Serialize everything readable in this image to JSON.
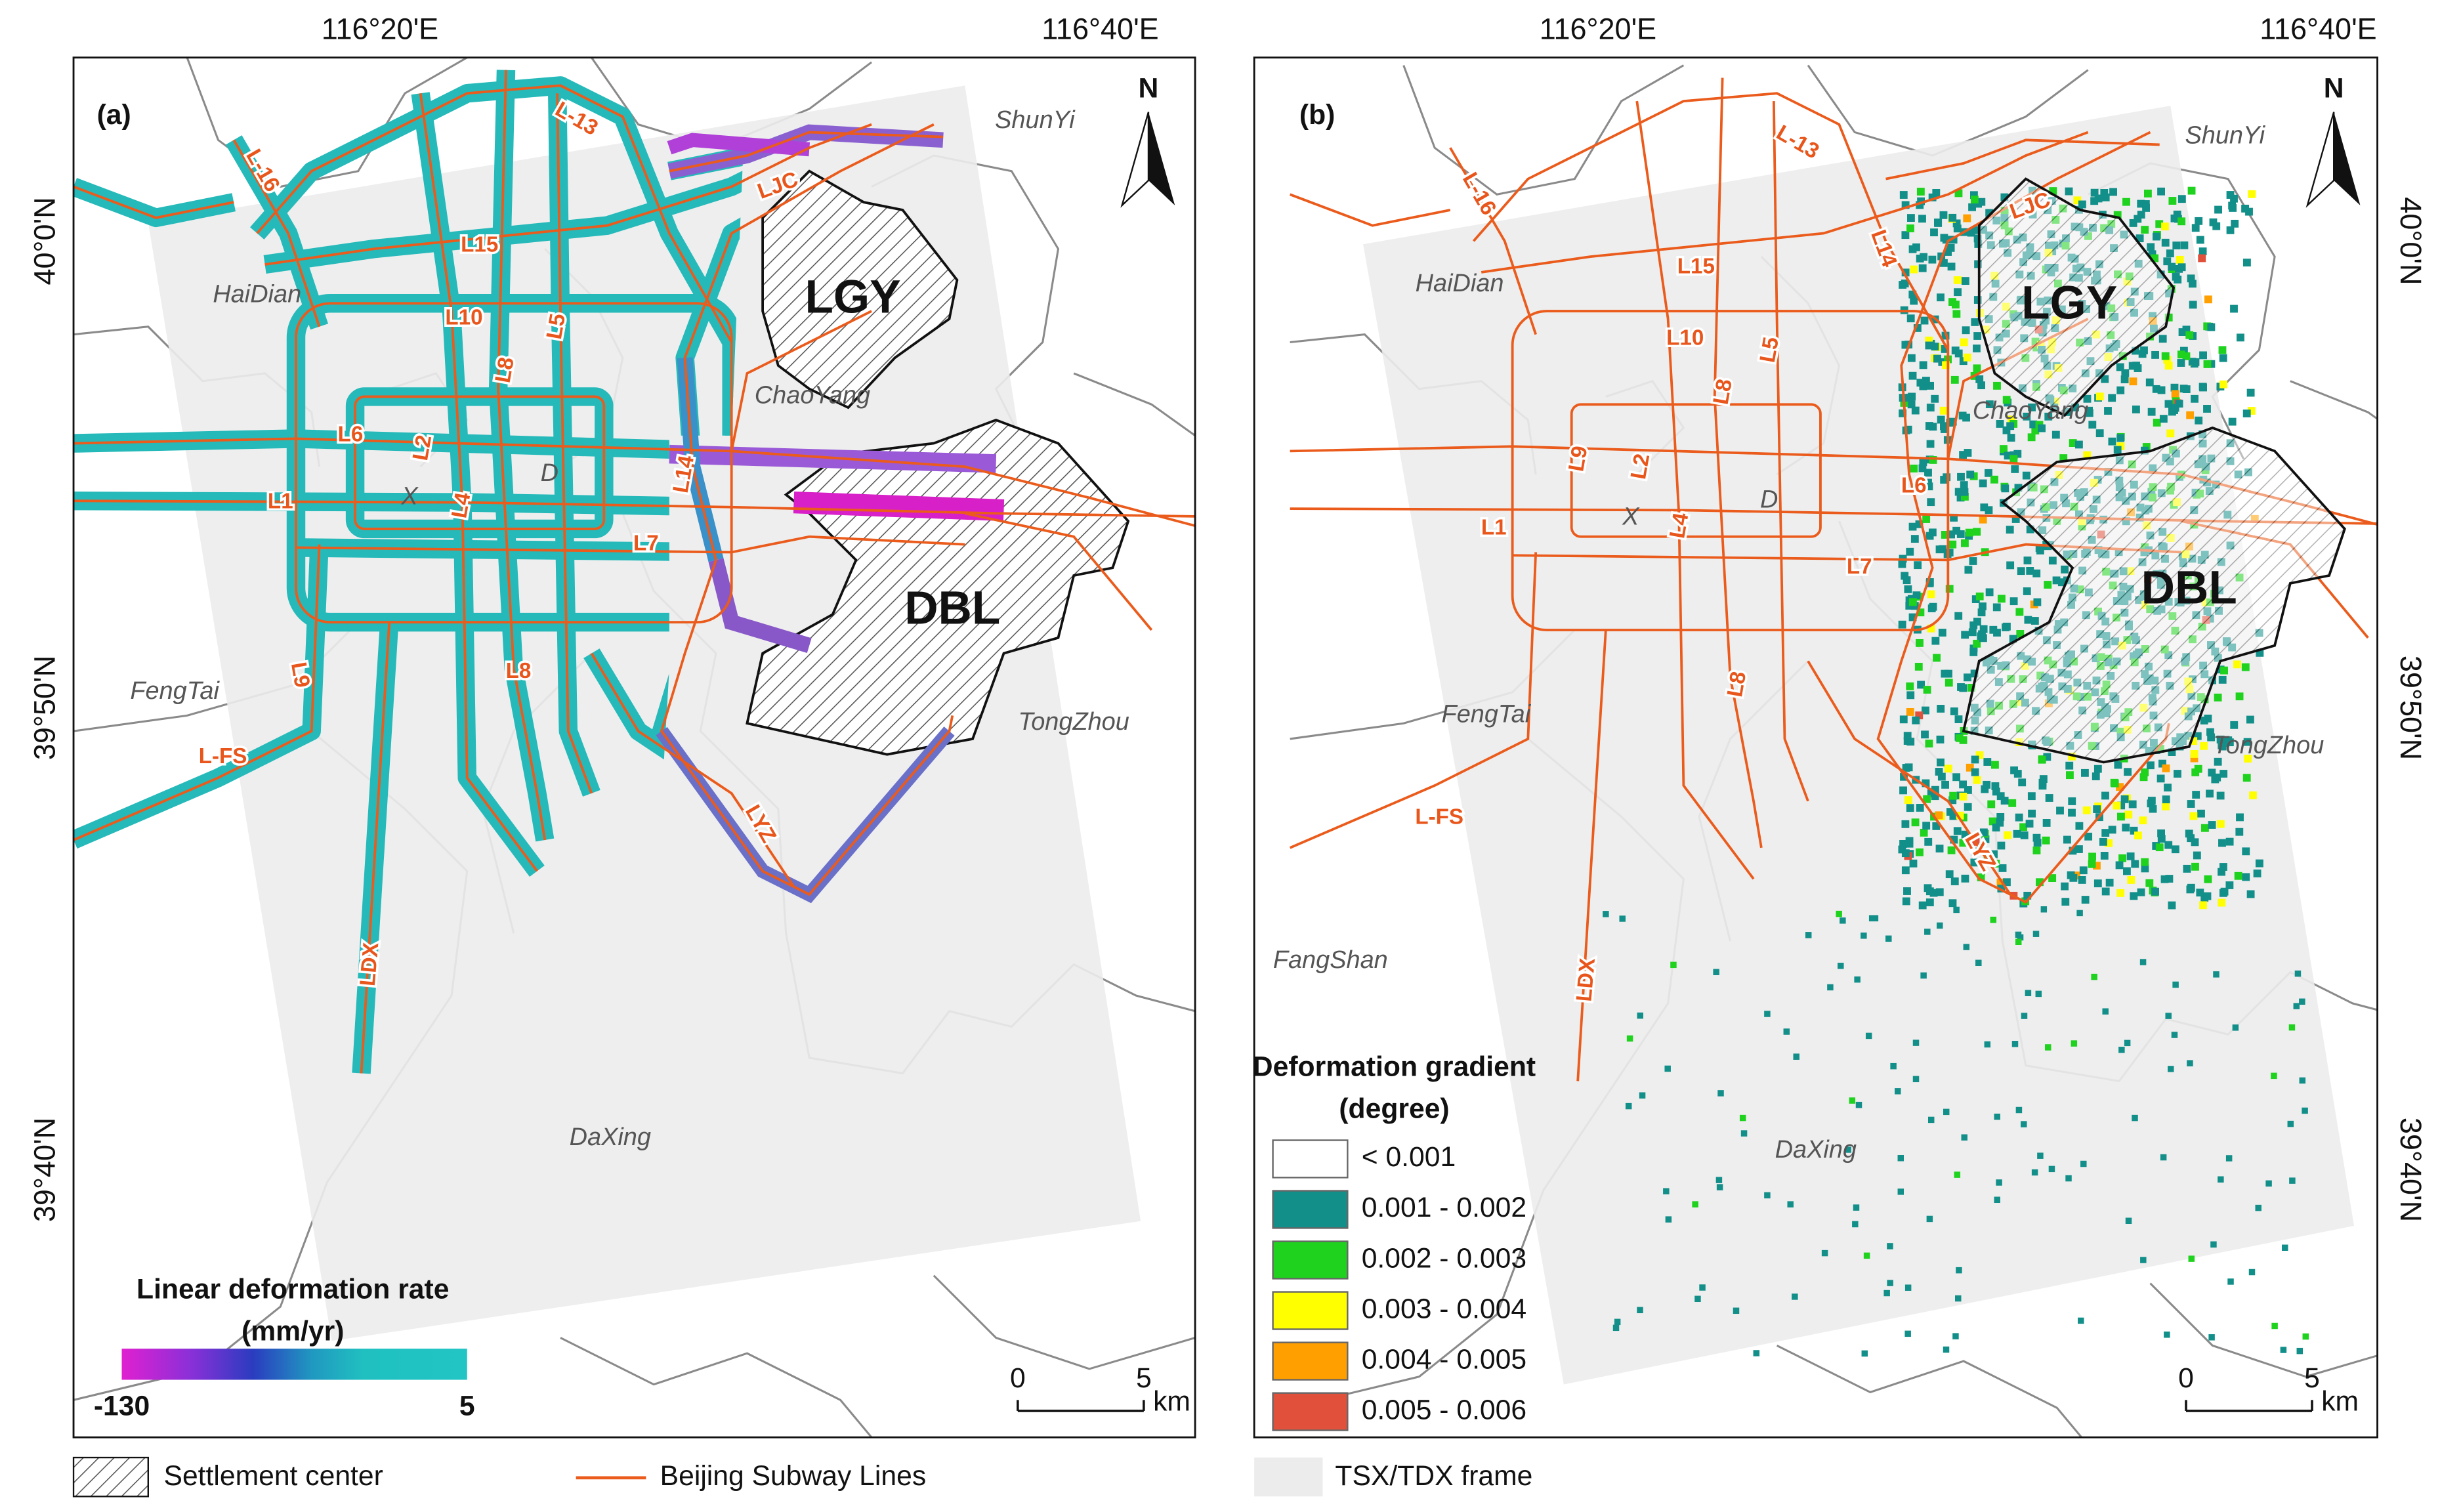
{
  "panels": [
    {
      "label": "(a)",
      "lon_labels": [
        "116°20'E",
        "116°40'E"
      ],
      "lat_labels": [
        "40°0'N",
        "39°50'N",
        "39°40'N"
      ],
      "north": "N",
      "places": [
        "ShunYi",
        "HaiDian",
        "ChaoYang",
        "FengTai",
        "TongZhou",
        "DaXing"
      ],
      "settlement_centers": [
        "LGY",
        "DBL"
      ],
      "line_labels": [
        "L-13",
        "L-16",
        "L15",
        "L10",
        "L5",
        "L8",
        "L6",
        "L2",
        "L4",
        "L1",
        "L14",
        "L7",
        "L9",
        "L8",
        "L-FS",
        "LDX",
        "LYZ",
        "LJC"
      ],
      "landmarks": [
        "X",
        "D"
      ],
      "legend": {
        "title": "Linear deformation rate",
        "unit": "(mm/yr)",
        "min": -130,
        "max": 5
      },
      "scale_bar": {
        "ticks": [
          0,
          5
        ],
        "unit": "km"
      }
    },
    {
      "label": "(b)",
      "lon_labels": [
        "116°20'E",
        "116°40'E"
      ],
      "lat_labels": [
        "40°0'N",
        "39°50'N",
        "39°40'N"
      ],
      "north": "N",
      "places": [
        "ShunYi",
        "HaiDian",
        "ChaoYang",
        "FengTai",
        "TongZhou",
        "FangShan",
        "DaXing"
      ],
      "settlement_centers": [
        "LGY",
        "DBL"
      ],
      "line_labels": [
        "L-13",
        "L-16",
        "L15",
        "L14",
        "L10",
        "L5",
        "L8",
        "L9",
        "L2",
        "L4",
        "L1",
        "L6",
        "L7",
        "L8",
        "L-FS",
        "LDX",
        "LYZ",
        "LJC"
      ],
      "landmarks": [
        "X",
        "D"
      ],
      "legend": {
        "title": "Deformation gradient",
        "unit": "(degree)",
        "classes": [
          {
            "label": "< 0.001",
            "color": "#ffffff"
          },
          {
            "label": "0.001 - 0.002",
            "color": "#138f8a"
          },
          {
            "label": "0.002 - 0.003",
            "color": "#1ed21e"
          },
          {
            "label": "0.003 - 0.004",
            "color": "#ffff00"
          },
          {
            "label": "0.004 - 0.005",
            "color": "#ffa000"
          },
          {
            "label": "0.005 - 0.006",
            "color": "#e0503a"
          }
        ]
      },
      "scale_bar": {
        "ticks": [
          0,
          5
        ],
        "unit": "km"
      }
    }
  ],
  "legend": {
    "settlement": "Settlement center",
    "subway": "Beijing Subway Lines",
    "frame": "TSX/TDX frame"
  }
}
